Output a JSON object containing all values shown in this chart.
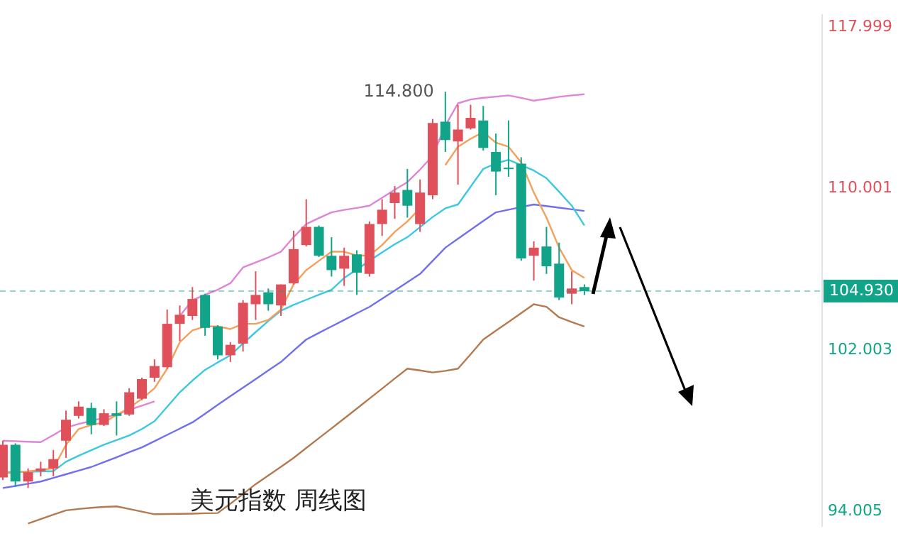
{
  "chart_data": {
    "type": "candlestick",
    "title": "美元指数 周线图",
    "categories": [
      null,
      null,
      null,
      null,
      null,
      null,
      null,
      null,
      null,
      null,
      null,
      null,
      null,
      null,
      null,
      null,
      null,
      null,
      null,
      null,
      null,
      null,
      null,
      null,
      null,
      null,
      null,
      null,
      null,
      null,
      null,
      null,
      null,
      null,
      null,
      null,
      null,
      null,
      null,
      null,
      null,
      null,
      null,
      null,
      null,
      null,
      null
    ],
    "ohlc": [
      [
        95.7,
        97.52,
        95.57,
        97.32
      ],
      [
        97.32,
        97.39,
        95.24,
        95.5
      ],
      [
        95.5,
        96.15,
        95.18,
        95.96
      ],
      [
        96.02,
        96.48,
        95.76,
        96.15
      ],
      [
        96.15,
        97.06,
        95.76,
        96.61
      ],
      [
        97.52,
        99.01,
        96.67,
        98.56
      ],
      [
        98.75,
        99.47,
        98.62,
        99.21
      ],
      [
        99.14,
        99.4,
        97.84,
        98.3
      ],
      [
        98.3,
        99.08,
        98.25,
        98.88
      ],
      [
        98.88,
        99.47,
        97.78,
        98.75
      ],
      [
        98.82,
        100.12,
        98.75,
        99.92
      ],
      [
        99.6,
        100.64,
        99.53,
        100.57
      ],
      [
        100.64,
        101.55,
        100.44,
        101.22
      ],
      [
        101.16,
        104.02,
        101.09,
        103.31
      ],
      [
        103.31,
        104.22,
        102.46,
        103.76
      ],
      [
        103.7,
        105.13,
        103.5,
        104.54
      ],
      [
        104.74,
        104.8,
        102.72,
        103.11
      ],
      [
        103.18,
        103.24,
        101.55,
        101.75
      ],
      [
        101.75,
        102.4,
        101.42,
        102.27
      ],
      [
        102.33,
        104.48,
        101.94,
        104.35
      ],
      [
        104.28,
        105.91,
        103.5,
        104.74
      ],
      [
        104.87,
        105.06,
        103.96,
        104.28
      ],
      [
        104.22,
        105.26,
        103.7,
        105.26
      ],
      [
        105.32,
        107.92,
        105.26,
        107.01
      ],
      [
        107.21,
        109.48,
        107.14,
        108.11
      ],
      [
        108.11,
        108.18,
        106.62,
        106.68
      ],
      [
        106.68,
        107.6,
        105.65,
        105.97
      ],
      [
        106.04,
        107.08,
        105.19,
        106.68
      ],
      [
        106.75,
        106.95,
        104.74,
        105.84
      ],
      [
        105.78,
        108.38,
        105.65,
        108.25
      ],
      [
        108.25,
        109.48,
        107.66,
        108.96
      ],
      [
        109.29,
        110.13,
        108.51,
        109.81
      ],
      [
        109.94,
        110.98,
        108.57,
        109.16
      ],
      [
        108.25,
        110.46,
        107.86,
        109.81
      ],
      [
        109.68,
        113.45,
        109.48,
        113.25
      ],
      [
        113.32,
        114.8,
        111.82,
        112.41
      ],
      [
        112.34,
        114.16,
        110.2,
        112.93
      ],
      [
        112.99,
        114.16,
        112.93,
        113.51
      ],
      [
        113.38,
        114.1,
        111.89,
        112.02
      ],
      [
        111.82,
        112.73,
        109.68,
        110.85
      ],
      [
        111.04,
        113.38,
        110.59,
        110.98
      ],
      [
        111.24,
        111.56,
        106.43,
        106.55
      ],
      [
        106.68,
        107.4,
        105.45,
        107.08
      ],
      [
        107.14,
        108.11,
        105.78,
        106.16
      ],
      [
        106.29,
        107.33,
        104.48,
        104.61
      ],
      [
        104.8,
        105.91,
        104.28,
        105.06
      ],
      [
        105.13,
        105.26,
        104.74,
        104.93
      ]
    ],
    "colors": [
      "#e0505a",
      "#12a488",
      "#e0505a",
      "#e0505a",
      "#e0505a",
      "#e0505a",
      "#e0505a",
      "#12a488",
      "#e0505a",
      "#12a488",
      "#e0505a",
      "#e0505a",
      "#e0505a",
      "#e0505a",
      "#e0505a",
      "#e0505a",
      "#12a488",
      "#12a488",
      "#e0505a",
      "#e0505a",
      "#e0505a",
      "#12a488",
      "#e0505a",
      "#e0505a",
      "#e0505a",
      "#12a488",
      "#12a488",
      "#e0505a",
      "#12a488",
      "#e0505a",
      "#e0505a",
      "#e0505a",
      "#12a488",
      "#e0505a",
      "#e0505a",
      "#12a488",
      "#e0505a",
      "#e0505a",
      "#12a488",
      "#12a488",
      "#12a488",
      "#12a488",
      "#e0505a",
      "#12a488",
      "#12a488",
      "#e0505a",
      "#12a488"
    ],
    "series": [
      {
        "type": "line",
        "color": "#f5a05a",
        "values": [
          95.89,
          95.95,
          96.0,
          96.08,
          96.15,
          97.32,
          98.1,
          98.3,
          98.43,
          98.8,
          99.14,
          99.6,
          100.12,
          101.09,
          102.4,
          102.98,
          103.18,
          103.18,
          103.05,
          103.31,
          103.31,
          103.5,
          104.02,
          105.26,
          105.97,
          106.43,
          106.88,
          106.88,
          106.69,
          106.69,
          107.21,
          107.86,
          108.38,
          109.03,
          null,
          111.17,
          112.08,
          112.47,
          112.8,
          112.28,
          112.08,
          111.3,
          109.81,
          108.57,
          107.08,
          105.97,
          105.58
        ]
      },
      {
        "type": "line",
        "color": "#3cc8e0",
        "values": [
          95.96,
          95.97,
          95.98,
          96.0,
          96.02,
          96.48,
          96.78,
          97.05,
          97.32,
          97.55,
          97.78,
          98.1,
          98.49,
          99.2,
          99.92,
          100.5,
          101.03,
          101.4,
          101.75,
          102.33,
          102.9,
          103.45,
          103.96,
          104.25,
          104.5,
          104.75,
          105.0,
          105.58,
          106.0,
          106.43,
          106.85,
          107.25,
          107.6,
          108.1,
          108.6,
          109.03,
          109.22,
          110.1,
          110.98,
          111.25,
          111.43,
          111.17,
          110.9,
          110.52,
          109.85,
          109.16,
          108.18
        ]
      },
      {
        "type": "line",
        "color": "#6f6ff0",
        "values": [
          95.18,
          95.28,
          95.39,
          95.5,
          95.68,
          95.86,
          96.04,
          96.22,
          96.46,
          96.7,
          96.95,
          97.19,
          97.5,
          97.81,
          98.12,
          98.43,
          98.86,
          99.3,
          99.73,
          100.15,
          100.57,
          101.0,
          101.42,
          101.98,
          102.53,
          102.86,
          103.18,
          103.5,
          103.83,
          104.15,
          104.55,
          104.96,
          105.37,
          105.78,
          106.43,
          107.08,
          107.52,
          107.96,
          108.4,
          108.83,
          108.96,
          109.09,
          109.22,
          109.14,
          109.06,
          108.98,
          108.9
        ]
      },
      {
        "type": "line",
        "color": "#df85d8",
        "values": [
          97.52,
          97.5,
          97.47,
          97.45,
          97.8,
          98.17,
          98.35,
          98.5,
          98.66,
          98.82,
          99.05,
          99.26,
          99.47,
          null,
          103.7,
          104.48,
          104.75,
          105.0,
          105.32,
          106.1,
          106.35,
          106.6,
          106.88,
          107.6,
          108.25,
          108.55,
          108.83,
          108.95,
          109.05,
          109.16,
          109.55,
          109.95,
          110.33,
          110.95,
          111.63,
          113.12,
          114.23,
          114.42,
          114.5,
          114.56,
          114.62,
          114.5,
          114.36,
          114.45,
          114.55,
          114.62,
          114.68
        ]
      },
      {
        "type": "line",
        "color": "#b5794f",
        "values": [
          null,
          null,
          93.42,
          93.64,
          93.86,
          94.07,
          94.14,
          94.2,
          94.24,
          94.27,
          94.14,
          94.01,
          93.88,
          93.89,
          93.9,
          93.91,
          93.93,
          93.94,
          94.4,
          94.88,
          95.37,
          95.8,
          96.23,
          96.67,
          97.16,
          97.65,
          98.13,
          98.62,
          99.11,
          99.61,
          100.1,
          100.6,
          101.09,
          101.0,
          100.9,
          100.98,
          101.09,
          101.8,
          102.53,
          102.97,
          103.4,
          103.84,
          104.28,
          104.15,
          103.63,
          103.4,
          103.18
        ]
      }
    ],
    "ylim": [
      93.3,
      118.6
    ],
    "yticks": [
      117.999,
      110.001,
      102.003,
      94.005
    ],
    "tick_labels": "y",
    "ref_lines": [
      {
        "axis": "y",
        "value": 104.93,
        "label": "104.930",
        "color": "#12a488",
        "line_style": "dashed"
      }
    ],
    "annotations": [
      "114.800"
    ]
  }
}
